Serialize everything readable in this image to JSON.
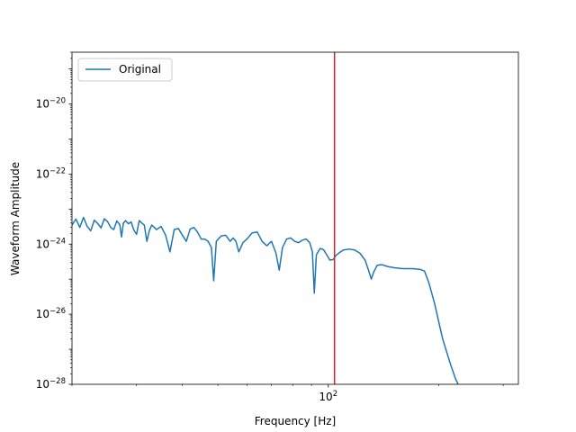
{
  "chart_data": {
    "type": "line",
    "title": "",
    "xlabel": "Frequency [Hz]",
    "ylabel": "Waveform Amplitude",
    "x_scale": "log",
    "y_scale": "log",
    "xlim": [
      20,
      330
    ],
    "ylim": [
      1e-28,
      3e-19
    ],
    "x_ticks": [
      {
        "value": 100,
        "base": "10",
        "exp": "2"
      }
    ],
    "y_ticks": [
      {
        "value": 1e-28,
        "base": "10",
        "exp": "−28"
      },
      {
        "value": 1e-26,
        "base": "10",
        "exp": "−26"
      },
      {
        "value": 1e-24,
        "base": "10",
        "exp": "−24"
      },
      {
        "value": 1e-22,
        "base": "10",
        "exp": "−22"
      },
      {
        "value": 1e-20,
        "base": "10",
        "exp": "−20"
      }
    ],
    "legend": {
      "position": "top-left",
      "entries": [
        "Original"
      ]
    },
    "grid": false,
    "series": [
      {
        "name": "Original",
        "color": "#1f77b4",
        "points": [
          [
            20.0,
            3.5e-24
          ],
          [
            20.5,
            5.2e-24
          ],
          [
            21.0,
            3e-24
          ],
          [
            21.5,
            5.8e-24
          ],
          [
            22.0,
            3.2e-24
          ],
          [
            22.5,
            2.4e-24
          ],
          [
            23.0,
            4.8e-24
          ],
          [
            23.5,
            3.9e-24
          ],
          [
            24.0,
            2.9e-24
          ],
          [
            24.5,
            5.3e-24
          ],
          [
            25.0,
            4.4e-24
          ],
          [
            25.5,
            3e-24
          ],
          [
            26.0,
            2.6e-24
          ],
          [
            26.5,
            4.6e-24
          ],
          [
            27.0,
            3.6e-24
          ],
          [
            27.3,
            1.6e-24
          ],
          [
            27.6,
            3.9e-24
          ],
          [
            28.0,
            4.7e-24
          ],
          [
            28.5,
            3.8e-24
          ],
          [
            29.0,
            4.3e-24
          ],
          [
            29.5,
            2.5e-24
          ],
          [
            30.0,
            1.9e-24
          ],
          [
            30.5,
            4.7e-24
          ],
          [
            31.0,
            4e-24
          ],
          [
            31.5,
            3.5e-24
          ],
          [
            32.0,
            1.2e-24
          ],
          [
            32.5,
            2.4e-24
          ],
          [
            33.0,
            3.5e-24
          ],
          [
            34.0,
            2.6e-24
          ],
          [
            35.0,
            3.2e-24
          ],
          [
            36.0,
            1.8e-24
          ],
          [
            37.0,
            6e-25
          ],
          [
            38.0,
            2.6e-24
          ],
          [
            39.0,
            2.8e-24
          ],
          [
            40.0,
            1.8e-24
          ],
          [
            41.0,
            1.2e-24
          ],
          [
            42.0,
            2.7e-24
          ],
          [
            43.0,
            3e-24
          ],
          [
            44.0,
            2.2e-24
          ],
          [
            45.0,
            1.4e-24
          ],
          [
            46.0,
            1.4e-24
          ],
          [
            47.0,
            1.2e-24
          ],
          [
            48.0,
            8e-25
          ],
          [
            48.7,
            9e-26
          ],
          [
            49.5,
            1.2e-24
          ],
          [
            51.0,
            1.7e-24
          ],
          [
            52.5,
            1.8e-24
          ],
          [
            54.0,
            1.2e-24
          ],
          [
            55.0,
            1.5e-24
          ],
          [
            56.0,
            1.2e-24
          ],
          [
            57.0,
            6e-25
          ],
          [
            58.5,
            1.1e-24
          ],
          [
            60.0,
            1.4e-24
          ],
          [
            62.0,
            2.1e-24
          ],
          [
            64.0,
            2.2e-24
          ],
          [
            66.0,
            1.2e-24
          ],
          [
            68.0,
            9e-25
          ],
          [
            70.0,
            1.2e-24
          ],
          [
            72.0,
            5.5e-25
          ],
          [
            73.5,
            1.8e-25
          ],
          [
            75.0,
            8e-25
          ],
          [
            77.0,
            1.4e-24
          ],
          [
            79.0,
            1.5e-24
          ],
          [
            81.0,
            1.2e-24
          ],
          [
            83.0,
            1.1e-24
          ],
          [
            85.0,
            1.3e-24
          ],
          [
            87.0,
            1.4e-24
          ],
          [
            89.0,
            1.1e-24
          ],
          [
            90.5,
            6e-25
          ],
          [
            91.6,
            4e-26
          ],
          [
            92.8,
            5e-25
          ],
          [
            95.0,
            7.5e-25
          ],
          [
            97.0,
            7e-25
          ],
          [
            99.0,
            5e-25
          ],
          [
            101.0,
            3.5e-25
          ],
          [
            103.0,
            3.6e-25
          ],
          [
            105.0,
            4.8e-25
          ],
          [
            107.0,
            5.6e-25
          ],
          [
            110.0,
            6.8e-25
          ],
          [
            114.0,
            7.2e-25
          ],
          [
            118.0,
            6.8e-25
          ],
          [
            122.0,
            5.5e-25
          ],
          [
            126.0,
            3.5e-25
          ],
          [
            129.0,
            1.7e-25
          ],
          [
            131.0,
            1e-25
          ],
          [
            133.0,
            1.6e-25
          ],
          [
            136.0,
            2.5e-25
          ],
          [
            140.0,
            2.6e-25
          ],
          [
            145.0,
            2.3e-25
          ],
          [
            152.0,
            2.1e-25
          ],
          [
            160.0,
            2e-25
          ],
          [
            170.0,
            2e-25
          ],
          [
            178.0,
            1.9e-25
          ],
          [
            183.0,
            1.7e-25
          ],
          [
            188.0,
            8e-26
          ],
          [
            195.0,
            2e-26
          ],
          [
            205.0,
            2e-27
          ],
          [
            215.0,
            4e-28
          ],
          [
            222.0,
            1.5e-28
          ],
          [
            226.0,
            1e-28
          ]
        ]
      }
    ],
    "annotations": [
      {
        "type": "vline",
        "x": 104,
        "color": "#d62728"
      }
    ]
  }
}
